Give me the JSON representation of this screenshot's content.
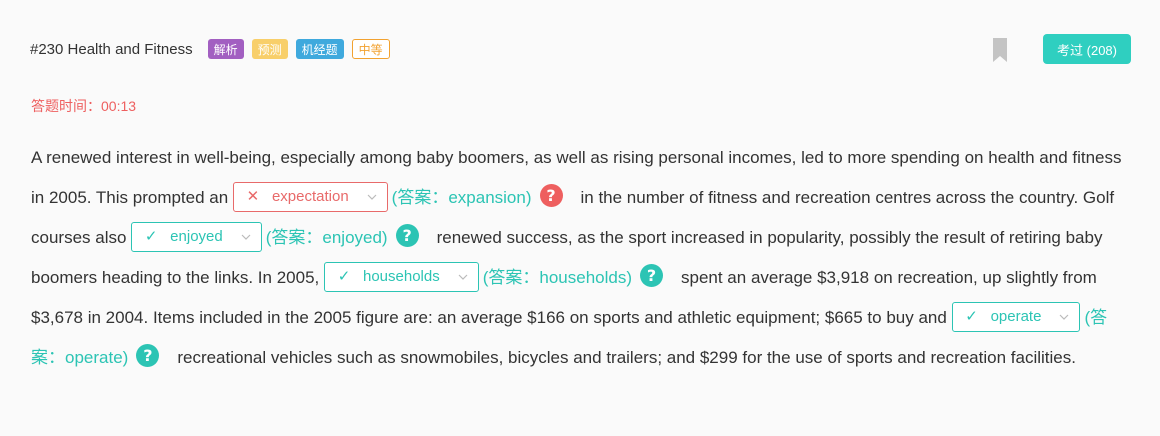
{
  "header": {
    "title": "#230 Health and Fitness",
    "tags": [
      "解析",
      "预测",
      "机经题",
      "中等"
    ],
    "passed_label": "考过 (208)"
  },
  "timer": {
    "text": "答题时间：00:13"
  },
  "passage": {
    "segments": {
      "t1": "A renewed interest in well-being, especially among baby boomers, as well as rising personal incomes, led to more spending on health and fitness in 2005. This prompted an",
      "t2": "in the number of fitness and recreation centres across the country. Golf courses also",
      "t3": "renewed success, as the sport increased in popularity, possibly the result of retiring baby boomers heading to the links. In 2005,",
      "t4": "spent an average $3,918 on recreation, up slightly from $3,678 in 2004. Items included in the 2005 figure are: an average $166 on sports and athletic equipment; $665 to buy and",
      "t5": "recreational vehicles such as snowmobiles, bicycles and trailers; and $299 for the use of sports and recreation facilities."
    },
    "blanks": [
      {
        "selected": "expectation",
        "status": "wrong",
        "mark": "✕",
        "answer": "(答案：expansion)"
      },
      {
        "selected": "enjoyed",
        "status": "right",
        "mark": "✓",
        "answer": "(答案：enjoyed)"
      },
      {
        "selected": "households",
        "status": "right",
        "mark": "✓",
        "answer": "(答案：households)"
      },
      {
        "selected": "operate",
        "status": "right",
        "mark": "✓",
        "answer": "(答案：operate)"
      }
    ],
    "help_glyph": "?"
  },
  "colors": {
    "accent": "#2fcfc0",
    "wrong": "#ee5f5f",
    "correct": "#2cc4b4"
  }
}
